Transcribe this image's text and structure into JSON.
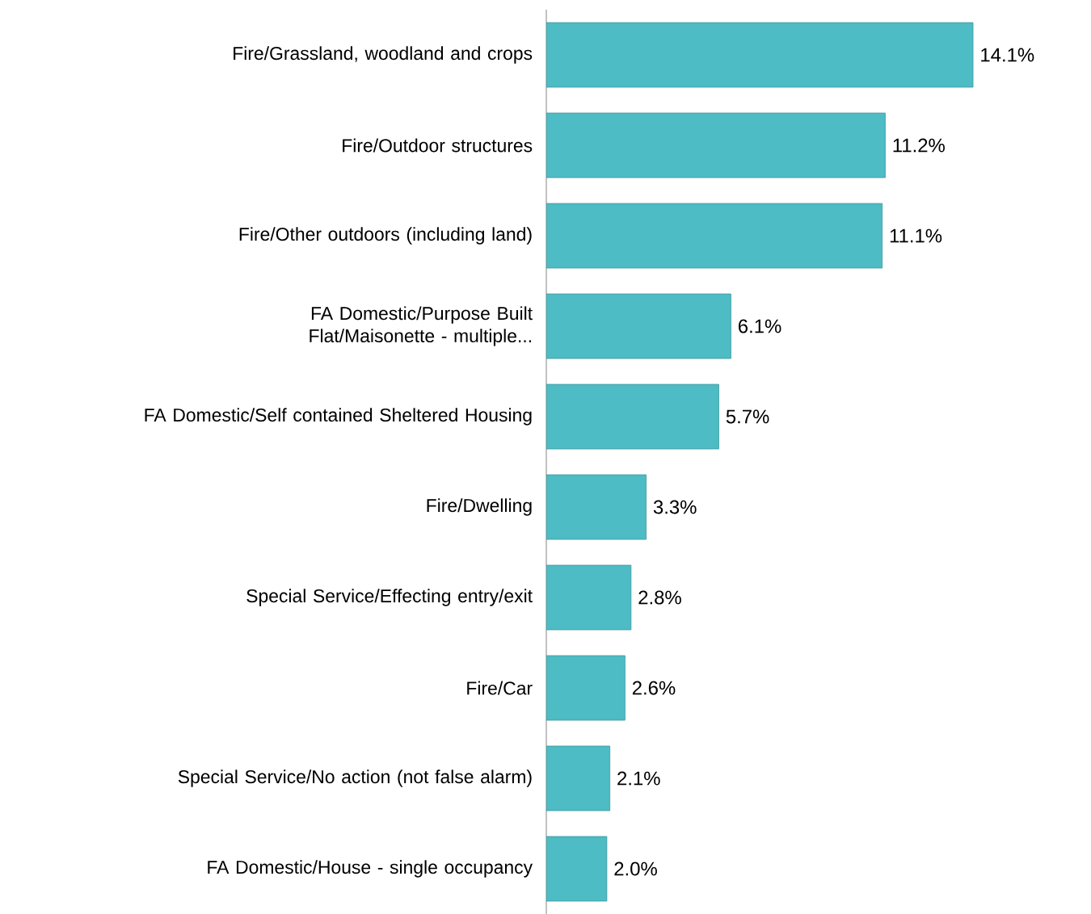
{
  "chart_data": {
    "type": "bar",
    "orientation": "horizontal",
    "categories": [
      "Fire/Grassland, woodland and crops",
      "Fire/Outdoor structures",
      "Fire/Other outdoors (including land)",
      "FA Domestic/Purpose Built Flat/Maisonette - multiple...",
      "FA Domestic/Self contained Sheltered Housing",
      "Fire/Dwelling",
      "Special Service/Effecting entry/exit",
      "Fire/Car",
      "Special Service/No action (not false alarm)",
      "FA Domestic/House - single occupancy"
    ],
    "values": [
      14.1,
      11.2,
      11.1,
      6.1,
      5.7,
      3.3,
      2.8,
      2.6,
      2.1,
      2.0
    ],
    "value_labels": [
      "14.1%",
      "11.2%",
      "11.1%",
      "6.1%",
      "5.7%",
      "3.3%",
      "2.8%",
      "2.6%",
      "2.1%",
      "2.0%"
    ],
    "color": "#4dbcc4",
    "tick_labels": "y"
  }
}
